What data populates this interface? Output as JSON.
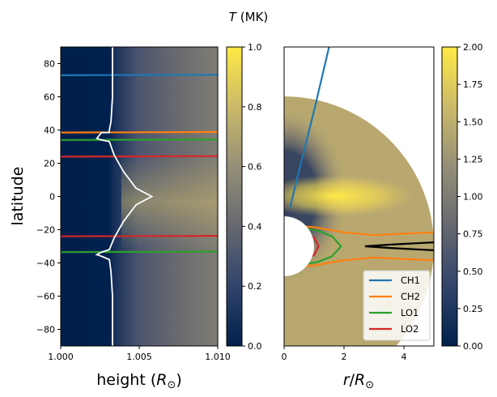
{
  "suptitle_var": "T",
  "suptitle_unit": " (MK)",
  "chart_data": [
    {
      "type": "heatmap",
      "panel": "left",
      "xlabel_prefix": "height (",
      "xlabel_var": "R",
      "xlabel_sub": "⊙",
      "xlabel_suffix": ")",
      "ylabel": "latitude",
      "xlim": [
        1.0,
        1.01
      ],
      "ylim": [
        -90,
        90
      ],
      "xticks": [
        "1.000",
        "1.005",
        "1.010"
      ],
      "xtick_values": [
        1.0,
        1.005,
        1.01
      ],
      "yticks": [
        "−80",
        "−60",
        "−40",
        "−20",
        "0",
        "20",
        "40",
        "60",
        "80"
      ],
      "ytick_values": [
        -80,
        -60,
        -40,
        -20,
        0,
        20,
        40,
        60,
        80
      ],
      "lines": [
        {
          "name": "CH1",
          "color": "#1f77b4",
          "lat": 73
        },
        {
          "name": "CH2",
          "color": "#ff7f0e",
          "lat": 38.5
        },
        {
          "name": "LO1",
          "color": "#2ca02c",
          "lat": 34
        },
        {
          "name": "LO2",
          "color": "#d62728",
          "lat": 24
        },
        {
          "name": "LO2",
          "color": "#d62728",
          "lat": -24
        },
        {
          "name": "LO1",
          "color": "#2ca02c",
          "lat": -33.5
        }
      ],
      "contour": {
        "color": "#ffffff",
        "points": [
          [
            1.0033,
            90
          ],
          [
            1.0033,
            60
          ],
          [
            1.0032,
            45
          ],
          [
            1.0031,
            40
          ],
          [
            1.0031,
            38.5
          ],
          [
            1.0026,
            38.5
          ],
          [
            1.0023,
            35
          ],
          [
            1.0026,
            34
          ],
          [
            1.0031,
            33
          ],
          [
            1.0034,
            25
          ],
          [
            1.004,
            15
          ],
          [
            1.0048,
            5
          ],
          [
            1.0058,
            0
          ],
          [
            1.0048,
            -5
          ],
          [
            1.004,
            -15
          ],
          [
            1.0034,
            -25
          ],
          [
            1.0031,
            -32
          ],
          [
            1.0026,
            -33.5
          ],
          [
            1.0023,
            -35
          ],
          [
            1.0026,
            -36
          ],
          [
            1.0031,
            -38
          ],
          [
            1.0032,
            -45
          ],
          [
            1.0033,
            -60
          ],
          [
            1.0033,
            -90
          ]
        ]
      },
      "colorbar": {
        "range": [
          0.0,
          1.0
        ],
        "ticks": [
          "0.0",
          "0.2",
          "0.4",
          "0.6",
          "0.8",
          "1.0"
        ],
        "tick_values": [
          0.0,
          0.2,
          0.4,
          0.6,
          0.8,
          1.0
        ]
      }
    },
    {
      "type": "heatmap",
      "panel": "right",
      "xlabel_var": "r",
      "xlabel_mid": "/",
      "xlabel_var2": "R",
      "xlabel_sub": "⊙",
      "xlim": [
        0,
        5
      ],
      "ylim": [
        -2.5,
        5
      ],
      "xticks": [
        "0",
        "2",
        "4"
      ],
      "xtick_values": [
        0,
        2,
        4
      ],
      "lines": [
        {
          "name": "CH1",
          "color": "#1f77b4",
          "points": [
            [
              0.2,
              0.98
            ],
            [
              0.5,
              1.9
            ],
            [
              1.0,
              3.4
            ],
            [
              1.5,
              5.0
            ]
          ]
        },
        {
          "name": "CH2",
          "color": "#ff7f0e",
          "points": [
            [
              0.55,
              0.5
            ],
            [
              1.0,
              0.48
            ],
            [
              2.0,
              0.35
            ],
            [
              3.0,
              0.28
            ],
            [
              4.0,
              0.32
            ],
            [
              5.0,
              0.35
            ]
          ]
        },
        {
          "name": "CH2",
          "color": "#ff7f0e",
          "points": [
            [
              0.55,
              -0.5
            ],
            [
              1.0,
              -0.48
            ],
            [
              2.0,
              -0.35
            ],
            [
              3.0,
              -0.28
            ],
            [
              4.0,
              -0.32
            ],
            [
              5.0,
              -0.35
            ]
          ]
        },
        {
          "name": "LO1",
          "color": "#2ca02c",
          "points": [
            [
              0.62,
              0.45
            ],
            [
              1.1,
              0.4
            ],
            [
              1.6,
              0.25
            ],
            [
              1.9,
              0.0
            ],
            [
              1.6,
              -0.25
            ],
            [
              1.1,
              -0.4
            ],
            [
              0.62,
              -0.45
            ]
          ]
        },
        {
          "name": "LO2",
          "color": "#d62728",
          "points": [
            [
              0.75,
              0.3
            ],
            [
              1.0,
              0.22
            ],
            [
              1.15,
              0.0
            ],
            [
              1.0,
              -0.22
            ],
            [
              0.75,
              -0.3
            ]
          ]
        }
      ],
      "streamer": {
        "color": "#000000",
        "points": [
          [
            5.0,
            0.1
          ],
          [
            3.5,
            0.04
          ],
          [
            2.7,
            0.0
          ],
          [
            3.5,
            -0.04
          ],
          [
            5.0,
            -0.1
          ]
        ]
      },
      "legend": {
        "location": "lower right",
        "entries": [
          {
            "label": "CH1",
            "color": "#1f77b4"
          },
          {
            "label": "CH2",
            "color": "#ff7f0e"
          },
          {
            "label": "LO1",
            "color": "#2ca02c"
          },
          {
            "label": "LO2",
            "color": "#d62728"
          }
        ]
      },
      "colorbar": {
        "range": [
          0.0,
          2.0
        ],
        "ticks": [
          "0.00",
          "0.25",
          "0.50",
          "0.75",
          "1.00",
          "1.25",
          "1.50",
          "1.75",
          "2.00"
        ],
        "tick_values": [
          0.0,
          0.25,
          0.5,
          0.75,
          1.0,
          1.25,
          1.5,
          1.75,
          2.0
        ]
      }
    }
  ]
}
